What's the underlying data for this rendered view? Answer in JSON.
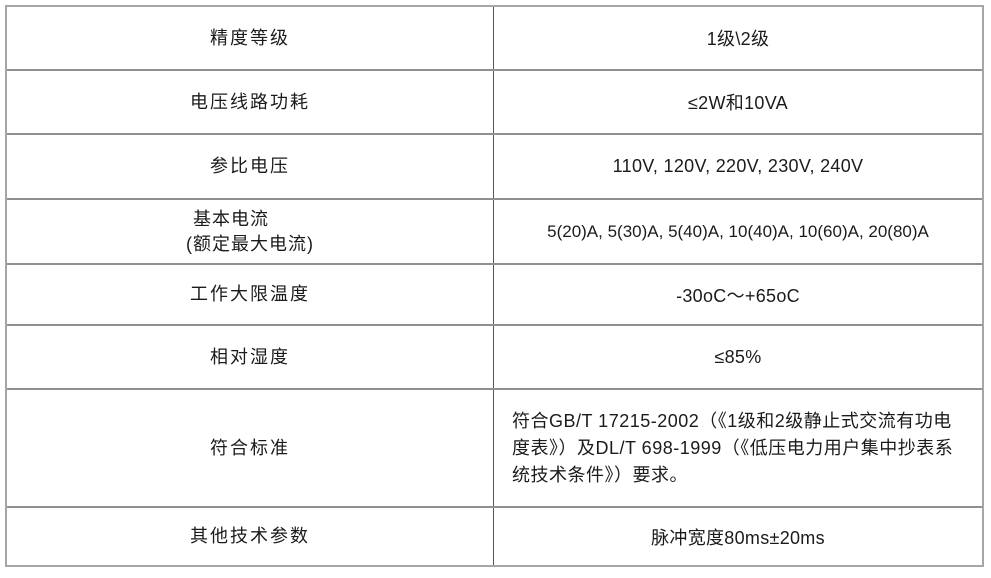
{
  "table": {
    "rows": [
      {
        "label": "精度等级",
        "value": "1级\\2级"
      },
      {
        "label": "电压线路功耗",
        "value": "≤2W和10VA"
      },
      {
        "label": "参比电压",
        "value": "110V, 120V, 220V, 230V, 240V"
      },
      {
        "label": "基本电流\n(额定最大电流)",
        "value": "5(20)A, 5(30)A, 5(40)A, 10(40)A, 10(60)A, 20(80)A"
      },
      {
        "label": "工作大限温度",
        "value": "-30oC～+65oC"
      },
      {
        "label": "相对湿度",
        "value": "≤85%"
      },
      {
        "label": "符合标准",
        "value": "符合GB/T 17215-2002（《1级和2级静止式交流有功电度表》）及DL/T 698-1999（《低压电力用户集中抄表系统技术条件》）要求。"
      },
      {
        "label": "其他技术参数",
        "value": "脉冲宽度80ms±20ms"
      }
    ],
    "colors": {
      "outer_border": "#a6a6a6",
      "row_divider": "#8f8f8f",
      "column_divider": "#555555",
      "text": "#1b1b1b",
      "background": "#ffffff"
    }
  }
}
